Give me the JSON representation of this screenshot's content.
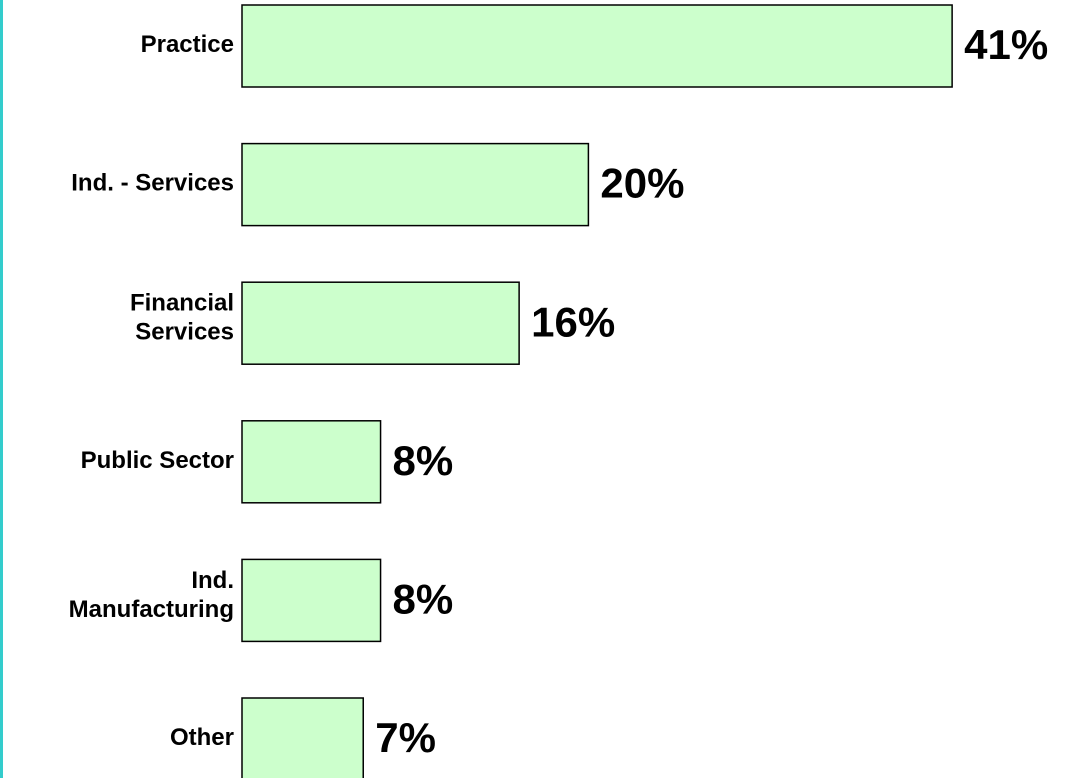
{
  "chart_data": {
    "type": "barh",
    "categories": [
      "Practice",
      "Ind. - Services",
      "Financial\nServices",
      "Public Sector",
      "Ind.\nManufacturing",
      "Other"
    ],
    "values": [
      41,
      20,
      16,
      8,
      8,
      7
    ],
    "value_labels": [
      "41%",
      "20%",
      "16%",
      "8%",
      "8%",
      "7%"
    ],
    "color": "#ccffcc",
    "edgecolor": "#000000"
  }
}
